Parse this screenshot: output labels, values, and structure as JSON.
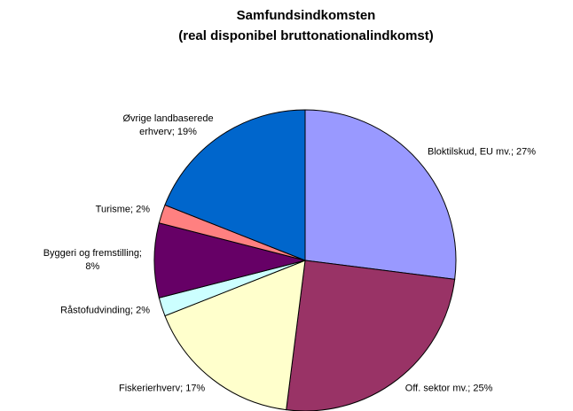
{
  "chart_data": {
    "type": "pie",
    "title": "Samfundsindkomsten\n(real disponibel bruttonationalindkomst)",
    "values": [
      27,
      25,
      17,
      2,
      8,
      2,
      19
    ],
    "value_labels": [
      "Bloktilskud, EU mv.; 27%",
      "Off. sektor mv.; 25%",
      "Fiskerierhverv; 17%",
      "Råstofudvinding; 2%",
      "Byggeri og fremstilling;\n8%",
      "Turisme; 2%",
      "Øvrige landbaserede\nerhverv; 19%"
    ],
    "colors": [
      "#9999ff",
      "#993366",
      "#ffffcc",
      "#ccffff",
      "#660066",
      "#ff8080",
      "#0066cc"
    ]
  }
}
